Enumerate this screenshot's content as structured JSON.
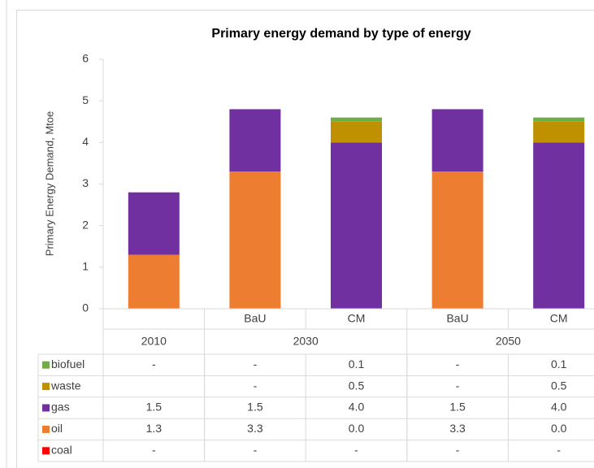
{
  "chart_data": {
    "type": "stacked_bar",
    "title": "Primary energy demand by type of energy",
    "y_label": "Primary Energy Demand, Mtoe",
    "categories": [
      null,
      "BaU",
      "CM",
      "BaU",
      "CM"
    ],
    "groups": [
      {
        "name": "2010",
        "size": 1
      },
      {
        "name": "2030",
        "size": 2
      },
      {
        "name": "2050",
        "size": 2
      }
    ],
    "ylim": [
      0,
      6
    ],
    "yticks": [
      0,
      1,
      2,
      3,
      4,
      5,
      6
    ],
    "series": [
      {
        "name": "coal",
        "color": "#ff0000",
        "values": [
          0,
          0,
          0,
          0,
          0
        ],
        "value_labels": [
          "-",
          "-",
          "-",
          "-",
          "-"
        ]
      },
      {
        "name": "oil",
        "color": "#ed7d31",
        "values": [
          1.3,
          3.3,
          0.0,
          3.3,
          0.0
        ],
        "value_labels": [
          "1.3",
          "3.3",
          "0.0",
          "3.3",
          "0.0"
        ]
      },
      {
        "name": "gas",
        "color": "#7030a0",
        "values": [
          1.5,
          1.5,
          4.0,
          1.5,
          4.0
        ],
        "value_labels": [
          "1.5",
          "1.5",
          "4.0",
          "1.5",
          "4.0"
        ]
      },
      {
        "name": "waste",
        "color": "#bf9000",
        "values": [
          null,
          0,
          0.5,
          0,
          0.5
        ],
        "value_labels": [
          null,
          "-",
          "0.5",
          "-",
          "0.5"
        ]
      },
      {
        "name": "biofuel",
        "color": "#70ad47",
        "values": [
          0,
          0,
          0.1,
          0,
          0.1
        ],
        "value_labels": [
          "-",
          "-",
          "0.1",
          "-",
          "0.1"
        ]
      }
    ]
  }
}
